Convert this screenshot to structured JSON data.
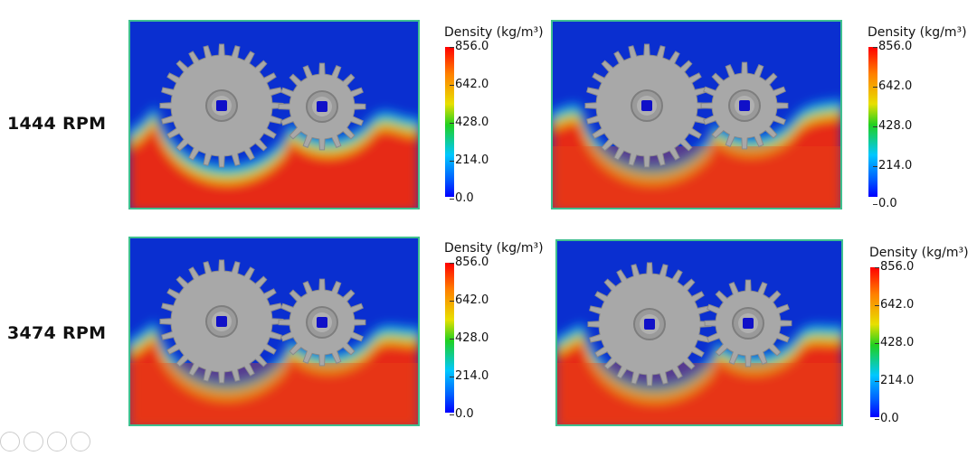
{
  "rows": [
    {
      "label": "1444 RPM"
    },
    {
      "label": "3474 RPM"
    }
  ],
  "colorbar": {
    "title": "Density (kg/m³)",
    "ticks": [
      "856.0",
      "642.0",
      "428.0",
      "214.0",
      "0.0"
    ],
    "colors": {
      "high": "#ff0000",
      "mid": "#e8e000",
      "low": "#0000ff"
    }
  }
}
